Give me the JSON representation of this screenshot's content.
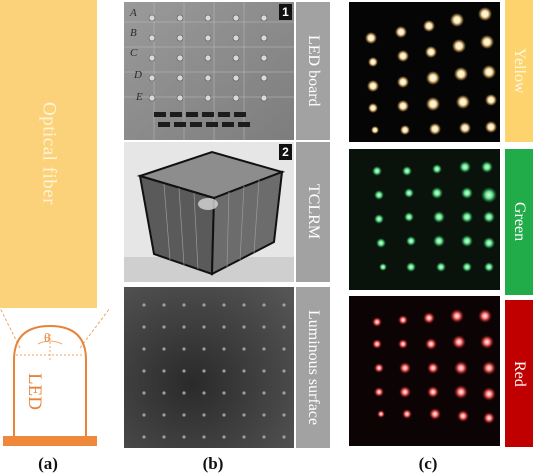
{
  "panel_a": {
    "fiber_label": "Optical fiber",
    "angle_symbol": "θ",
    "led_label": "LED",
    "colors": {
      "fiber": "#fbd27a",
      "led": "#e8843a"
    }
  },
  "panel_b": {
    "badges": [
      "1",
      "2"
    ],
    "tags": [
      "LED board",
      "TCLRM",
      "Luminous surface"
    ],
    "grid_row_letters": [
      "A",
      "B",
      "C",
      "D",
      "E"
    ]
  },
  "panel_c": {
    "labels": [
      "Yellow",
      "Green",
      "Red"
    ],
    "colors": {
      "yellow": "#fdd36e",
      "green": "#22ac49",
      "red": "#c00000"
    }
  },
  "captions": [
    "(a)",
    "(b)",
    "(c)"
  ]
}
